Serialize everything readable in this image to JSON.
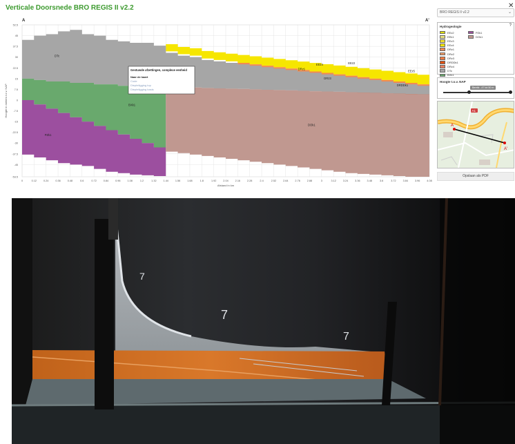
{
  "app": {
    "title": "Verticale Doorsnede BRO REGIS II v2.2",
    "close_symbol": "✕"
  },
  "model_select": {
    "value": "BRO REGIS II v2.2"
  },
  "chart_data": {
    "type": "area",
    "title": "",
    "xlabel": "Afstand in km",
    "ylabel": "Hoogte in meters t.o.v. NAP",
    "section_start": "A",
    "section_end": "A'",
    "xlim": [
      0,
      4.08
    ],
    "ylim": [
      -53.5,
      52.5
    ],
    "x_ticks": [
      "0",
      "0.12",
      "0.24",
      "0.36",
      "0.48",
      "0.6",
      "0.72",
      "0.84",
      "0.96",
      "1.08",
      "1.2",
      "1.32",
      "1.44",
      "1.56",
      "1.68",
      "1.8",
      "1.92",
      "2.04",
      "2.16",
      "2.28",
      "2.4",
      "2.52",
      "2.64",
      "2.76",
      "2.88",
      "3",
      "3.12",
      "3.24",
      "3.36",
      "3.48",
      "3.6",
      "3.72",
      "3.84",
      "3.96",
      "4.08"
    ],
    "y_ticks": [
      "52.5",
      "45",
      "37.5",
      "30",
      "22.5",
      "15",
      "7.5",
      "0",
      "-7.5",
      "-15",
      "-22.5",
      "-30",
      "-37.5",
      "-45",
      "-53.5"
    ],
    "layers": [
      {
        "code": "DTc",
        "label": "DTc",
        "color": "#a6a6a6",
        "label_x": 0.35,
        "label_y": 30
      },
      {
        "code": "BXk1",
        "label": "BXk1",
        "color": "#69a96d",
        "label_x": 1.1,
        "label_y": -4
      },
      {
        "code": "PZk1",
        "label": "PZk1",
        "color": "#9c4f9f",
        "label_x": 0.26,
        "label_y": -25
      },
      {
        "code": "DOk1",
        "label": "DOk1",
        "color": "#c09890",
        "label_x": 2.9,
        "label_y": -18
      },
      {
        "code": "EEz2",
        "label": "EEz2",
        "color": "#e0e000",
        "label_x": 3.3,
        "label_y": 25
      },
      {
        "code": "EEz4",
        "label": "EEz4",
        "color": "#f6e600",
        "label_x": 2.98,
        "label_y": 24
      },
      {
        "code": "EEz5",
        "label": "EEz5",
        "color": "#f4ef50",
        "label_x": 3.9,
        "label_y": 19.5
      },
      {
        "code": "DRz1",
        "label": "DRz1",
        "color": "#f28a50",
        "label_x": 2.8,
        "label_y": 21
      },
      {
        "code": "DRz3",
        "label": "DRz3",
        "color": "#f07a40",
        "label_x": 3.06,
        "label_y": 14.5
      },
      {
        "code": "DRDDk1",
        "label": "DRDDk1",
        "color": "#e05010",
        "label_x": 3.81,
        "label_y": 9.5
      }
    ],
    "boundaries": {
      "x": [
        0,
        0.12,
        0.24,
        0.36,
        0.48,
        0.6,
        0.72,
        0.84,
        0.96,
        1.08,
        1.2,
        1.32,
        1.44,
        1.56,
        1.68,
        1.8,
        1.92,
        2.04,
        2.16,
        2.28,
        2.4,
        2.52,
        2.64,
        2.76,
        2.88,
        3,
        3.12,
        3.24,
        3.36,
        3.48,
        3.6,
        3.72,
        3.84,
        3.96,
        4.08
      ],
      "surface": [
        42,
        45,
        46,
        48,
        49,
        46,
        45,
        42,
        41,
        40,
        40,
        38,
        33,
        31,
        30,
        28,
        27,
        26,
        25,
        24,
        23,
        22,
        21,
        20,
        19,
        18,
        17,
        16,
        15,
        14,
        13,
        12,
        11,
        10,
        10
      ],
      "holocene_top": [
        null,
        null,
        null,
        null,
        null,
        null,
        null,
        null,
        null,
        null,
        null,
        null,
        33,
        33,
        33,
        32.5,
        32,
        31.5,
        31,
        30.5,
        30,
        29.5,
        29,
        28.5,
        28,
        27.5,
        27,
        26.5,
        26,
        25.5,
        25,
        24.5,
        24,
        23.5,
        23
      ],
      "dtc_base": [
        15,
        14,
        13,
        13,
        12,
        12,
        11,
        11,
        10,
        10,
        10,
        9.5,
        9.5,
        9,
        8.8,
        8.5,
        8.2,
        8,
        7.8,
        7.5,
        7.2,
        7,
        6.8,
        6.5,
        6.2,
        6,
        5.8,
        5.5,
        5.2,
        5,
        4.8,
        4.5,
        4.2,
        4,
        3.8
      ],
      "bxk1_base": [
        0,
        -3,
        -6,
        -9,
        -12,
        -15,
        -18,
        -21,
        -24,
        -27,
        -30,
        -33,
        -36
      ],
      "pzk1_base": [
        -38,
        -40,
        -42,
        -44,
        -45,
        -46,
        -48,
        -50,
        -51,
        -52,
        -52.5,
        -53,
        -53.5
      ],
      "dok1_base": [
        -36,
        -37,
        -38,
        -39,
        -40,
        -41,
        -42,
        -43,
        -44,
        -45,
        -46,
        -47,
        -48,
        -49,
        -50,
        -51,
        -51.5,
        -52,
        -52.5,
        -53,
        -53.5,
        -53.5
      ]
    },
    "tooltip": {
      "title": "Gestuwde afzettingen, complexe eenheid",
      "link_map": "Naar de kaart",
      "link_code": "Code",
      "link_top": "Diepteligging top",
      "link_base": "Diepteligging basis"
    }
  },
  "legend": {
    "title": "Hydrogeologie",
    "help": "?",
    "items": [
      {
        "label": "EEz2",
        "color": "#e0e000"
      },
      {
        "label": "EEk1",
        "color": "#e8e080"
      },
      {
        "label": "EEz3",
        "color": "#f0e030"
      },
      {
        "label": "EEz4",
        "color": "#f6e600"
      },
      {
        "label": "DRz1",
        "color": "#f28a50"
      },
      {
        "label": "DRz2",
        "color": "#f49a60"
      },
      {
        "label": "DRz3",
        "color": "#f07a40"
      },
      {
        "label": "DRDDk1",
        "color": "#e05010"
      },
      {
        "label": "DRz4",
        "color": "#e88060"
      },
      {
        "label": "DTc",
        "color": "#a6a6a6"
      },
      {
        "label": "BXk1",
        "color": "#69a96d"
      }
    ],
    "items2": [
      {
        "label": "PZk1",
        "color": "#9c4f9f"
      },
      {
        "label": "DOk1",
        "color": "#c09890"
      }
    ]
  },
  "height_panel": {
    "title": "Hoogte t.o.v. NAP",
    "slider_label": "Bereik: -47 tot 50 m",
    "slider_low": 0.37,
    "slider_high": 0.97
  },
  "map_panel": {
    "point_start": "A",
    "point_end": "A'",
    "road_label": "A1"
  },
  "pdf_button": {
    "label": "Opslaan als PDF"
  }
}
